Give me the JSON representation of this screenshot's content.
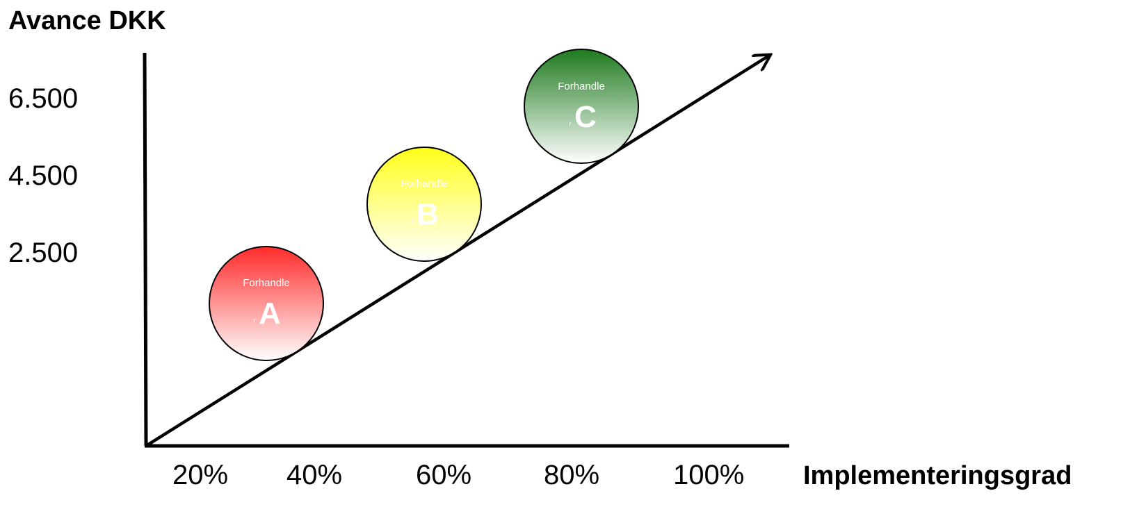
{
  "y_axis": {
    "title": "Avance DKK",
    "ticks": [
      "6.500",
      "4.500",
      "2.500"
    ]
  },
  "x_axis": {
    "title": "Implementeringsgrad",
    "ticks": [
      "20%",
      "40%",
      "60%",
      "80%",
      "100%"
    ]
  },
  "bubbles": [
    {
      "id": "a",
      "top_label": "Forhandle",
      "small_label": "r",
      "letter": "A",
      "color": "#ff2a2a"
    },
    {
      "id": "b",
      "top_label": "Forhandle",
      "small_label": "r",
      "letter": "B",
      "color": "#ffff1a"
    },
    {
      "id": "c",
      "top_label": "Forhandle",
      "small_label": "r",
      "letter": "C",
      "color": "#1e7a1e"
    }
  ],
  "colors": {
    "axis": "#000000",
    "trend_arrow": "#000000"
  }
}
